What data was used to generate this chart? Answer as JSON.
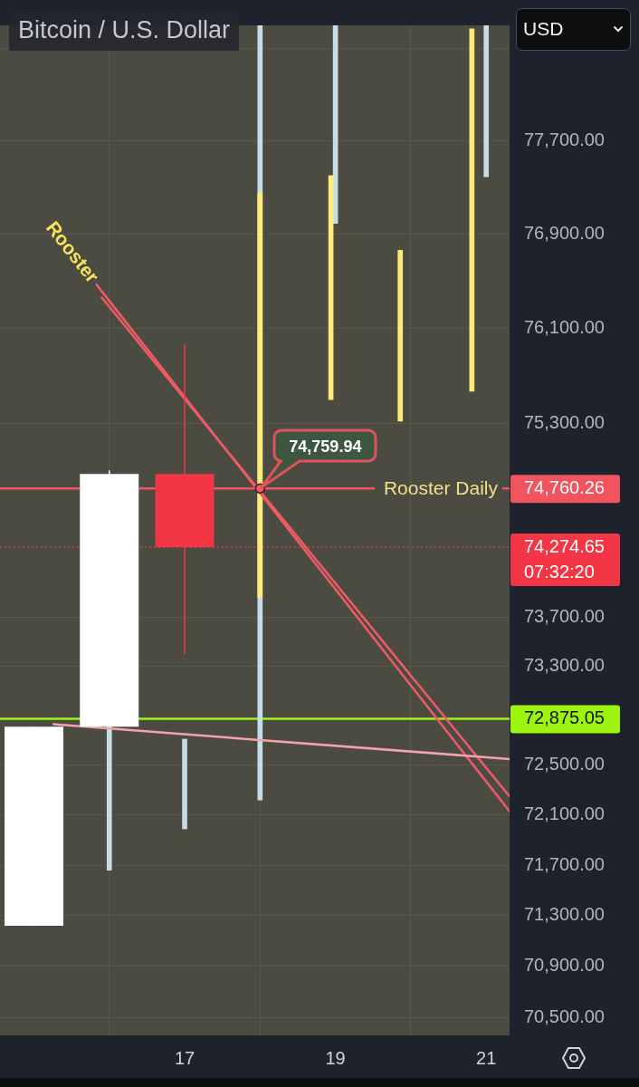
{
  "chart_data": {
    "type": "candlestick",
    "title": "Bitcoin / U.S. Dollar",
    "x": [
      15,
      16,
      17
    ],
    "ohlc": [
      [
        71220,
        72810,
        71220,
        72810
      ],
      [
        72810,
        74910,
        72810,
        74880
      ],
      [
        74880,
        75970,
        73400,
        74274.65
      ]
    ],
    "colors": [
      "#ffffff",
      "#ffffff",
      "#f23645"
    ],
    "series": [
      {
        "type": "bar",
        "color": "#c6dde7",
        "x": [
          16,
          17,
          18,
          19,
          21
        ],
        "base": [
          71660,
          71990,
          72220,
          76990,
          77390
        ],
        "values": [
          1150,
          720,
          6480,
          1710,
          1310
        ]
      },
      {
        "type": "bar",
        "color": "#ffeb78",
        "x": [
          18,
          18.94,
          19.86,
          20.81
        ],
        "base": [
          73860,
          75500,
          75320,
          75570
        ],
        "values": [
          3390,
          1900,
          1440,
          3100
        ]
      },
      {
        "type": "line",
        "name": "Rooster",
        "color": "#ef5a66",
        "x": [
          15.83,
          21.31
        ],
        "values": [
          76470,
          72130
        ]
      },
      {
        "type": "line",
        "color": "#ef5a66",
        "x": [
          15.9,
          21.31
        ],
        "values": [
          76360,
          72250
        ]
      },
      {
        "type": "line",
        "color": "#f4a3aa",
        "x": [
          15.26,
          21.31
        ],
        "values": [
          72830,
          72550
        ]
      }
    ],
    "xlim": [
      14.55,
      21.31
    ],
    "xticks": [
      17,
      19,
      21
    ],
    "ylim": [
      70360,
      78700
    ],
    "yticks": [
      {
        "value": 70500,
        "label": "70,500.00"
      },
      {
        "value": 70900,
        "label": "70,900.00"
      },
      {
        "value": 71300,
        "label": "71,300.00"
      },
      {
        "value": 71700,
        "label": "71,700.00"
      },
      {
        "value": 72100,
        "label": "72,100.00"
      },
      {
        "value": 72500,
        "label": "72,500.00"
      },
      {
        "value": 72875.05,
        "label": "72,875.05"
      },
      {
        "value": 73300,
        "label": "73,300.00"
      },
      {
        "value": 73700,
        "label": "73,700.00"
      },
      {
        "value": 74274.65,
        "label": "74,274.65"
      },
      {
        "value": 74760.26,
        "label": "74,760.26"
      },
      {
        "value": 75300,
        "label": "75,300.00"
      },
      {
        "value": 76100,
        "label": "76,100.00"
      },
      {
        "value": 76900,
        "label": "76,900.00"
      },
      {
        "value": 77700,
        "label": "77,700.00"
      },
      {
        "value": 78500,
        "label": null
      }
    ],
    "log": true,
    "grid": true,
    "marker": "none",
    "ref_lines": [
      {
        "axis": "y",
        "value": 74760.26,
        "label": "Rooster Daily",
        "color": "#f2545f"
      },
      {
        "axis": "y",
        "value": 74274.65,
        "color": "#f23645",
        "line_style": "dotted"
      },
      {
        "axis": "y",
        "value": 72875.05,
        "color": "#9cf40f"
      }
    ],
    "annotations": [
      {
        "text": "74,759.94",
        "x": 18,
        "y": 74759.94
      },
      "USD",
      "07:32:20"
    ]
  }
}
